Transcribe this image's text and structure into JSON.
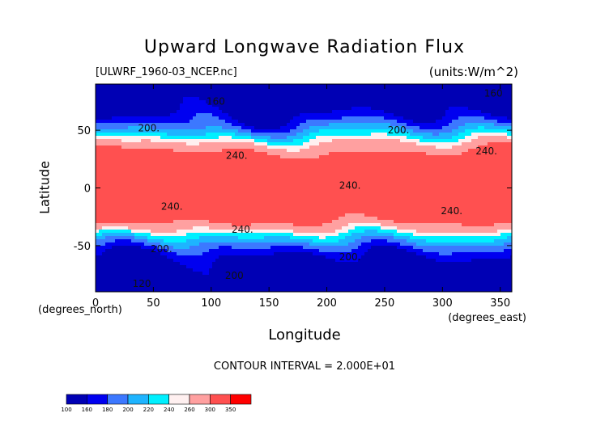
{
  "chart_data": {
    "type": "heatmap",
    "subtype": "filled-contour-map",
    "title": "Upward Longwave Radiation Flux",
    "dataset": "[ULWRF_1960-03_NCEP.nc]",
    "units": "(units:W/m^2)",
    "xlabel": "Longitude",
    "ylabel": "Latitude",
    "x_unit": "(degrees_east)",
    "y_unit": "(degrees_north)",
    "xlim": [
      0,
      360
    ],
    "ylim": [
      -90,
      90
    ],
    "x_ticks": [
      0,
      50,
      100,
      150,
      200,
      250,
      300,
      350
    ],
    "y_ticks": [
      -50,
      0,
      50
    ],
    "contour_interval": "CONTOUR INTERVAL = 2.000E+01",
    "levels": [
      100,
      160,
      180,
      200,
      220,
      240,
      260,
      300,
      350
    ],
    "level_colors": [
      "#0000b4",
      "#0000f0",
      "#3c78ff",
      "#1eb4ff",
      "#00f0ff",
      "#fff0f0",
      "#ffa0a0",
      "#ff5050",
      "#ff0000"
    ],
    "contour_labels": [
      {
        "text": "160",
        "lon": 104,
        "lat": 75
      },
      {
        "text": "160",
        "lon": 344,
        "lat": 82
      },
      {
        "text": "200.",
        "lon": 46,
        "lat": 52
      },
      {
        "text": "200.",
        "lon": 262,
        "lat": 50
      },
      {
        "text": "240.",
        "lon": 122,
        "lat": 28
      },
      {
        "text": "240.",
        "lon": 338,
        "lat": 32
      },
      {
        "text": "240.",
        "lon": 220,
        "lat": 2
      },
      {
        "text": "240.",
        "lon": 66,
        "lat": -16
      },
      {
        "text": "240.",
        "lon": 127,
        "lat": -36
      },
      {
        "text": "240.",
        "lon": 308,
        "lat": -20
      },
      {
        "text": "200.",
        "lon": 57,
        "lat": -53
      },
      {
        "text": "200.",
        "lon": 220,
        "lat": -60
      },
      {
        "text": "120",
        "lon": 40,
        "lat": -83
      },
      {
        "text": "200",
        "lon": 120,
        "lat": -76
      }
    ]
  }
}
